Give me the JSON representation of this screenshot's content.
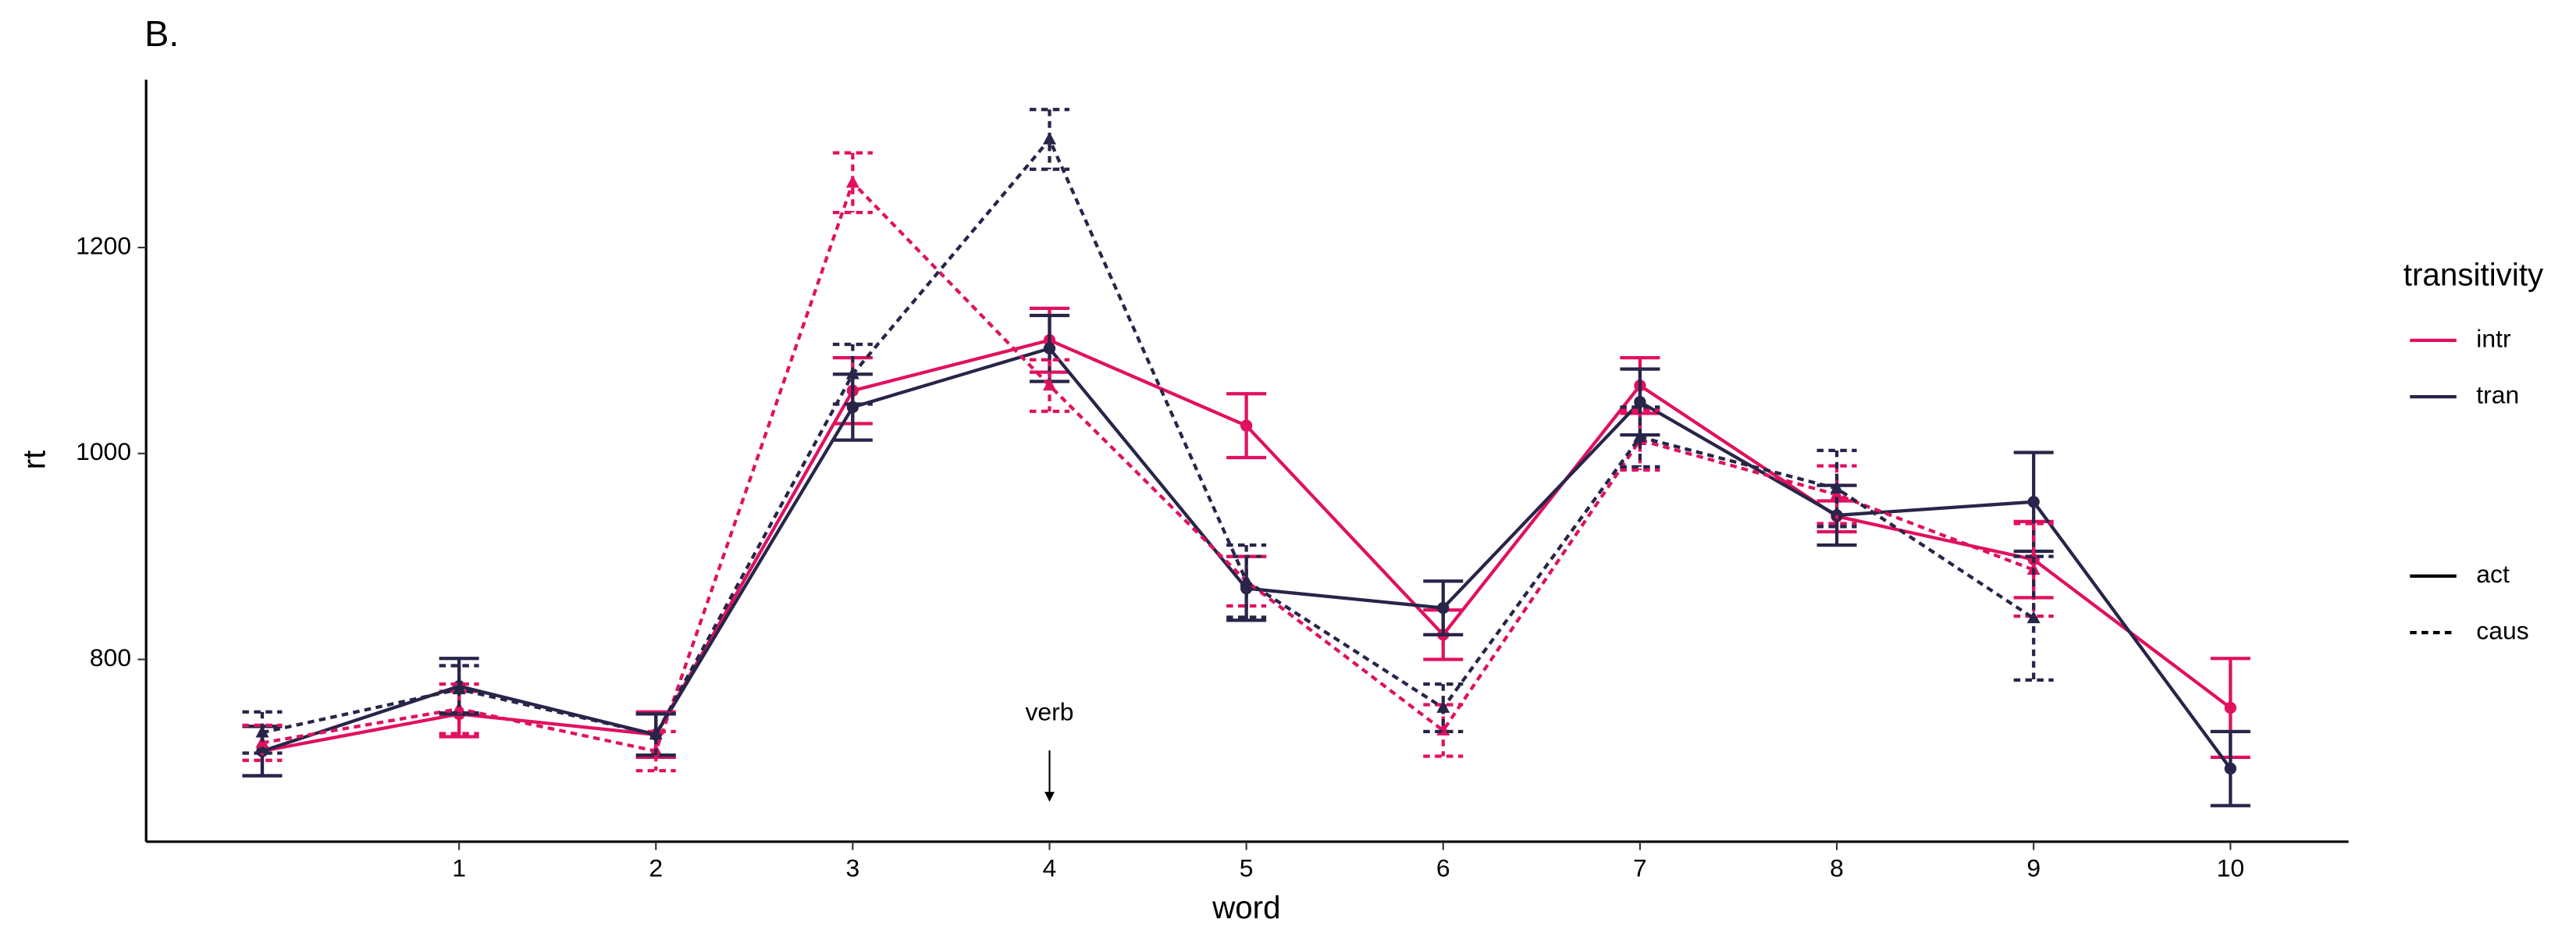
{
  "chart_data": {
    "type": "line",
    "subtitle": "B.",
    "x_label": "word",
    "y_label": "rt",
    "x": [
      0,
      1,
      2,
      3,
      4,
      5,
      6,
      7,
      8,
      9,
      10
    ],
    "xlim": [
      -0.59,
      10.6
    ],
    "xticks": [
      1,
      2,
      3,
      4,
      5,
      6,
      7,
      8,
      9,
      10
    ],
    "ylim": [
      623,
      1363
    ],
    "yticks": [
      800,
      1000,
      1200
    ],
    "series": [
      {
        "color": "#e0115f",
        "dashed": false,
        "marker": "circle",
        "values": [
          711,
          747,
          727,
          1061,
          1110,
          1027,
          824,
          1066,
          939,
          897,
          753
        ],
        "errors": [
          24,
          22,
          22,
          32,
          31,
          31,
          24,
          27,
          15,
          37,
          48
        ]
      },
      {
        "color": "#272549",
        "dashed": false,
        "marker": "circle",
        "values": [
          711,
          774,
          727,
          1045,
          1102,
          869,
          850,
          1050,
          940,
          953,
          694
        ],
        "errors": [
          24,
          27,
          20,
          32,
          32,
          31,
          26,
          32,
          29,
          48,
          36
        ]
      },
      {
        "color": "#e0115f",
        "dashed": true,
        "marker": "triangle",
        "values": [
          719,
          752,
          711,
          1263,
          1066,
          876,
          731,
          1013,
          960,
          887,
          null
        ],
        "errors": [
          17,
          24,
          19,
          29,
          25,
          24,
          25,
          29,
          28,
          45,
          null
        ]
      },
      {
        "color": "#272549",
        "dashed": true,
        "marker": "triangle",
        "values": [
          729,
          771,
          727,
          1077,
          1305,
          876,
          753,
          1016,
          966,
          840,
          null
        ],
        "errors": [
          20,
          23,
          20,
          29,
          29,
          35,
          23,
          29,
          37,
          60,
          null
        ]
      }
    ],
    "annotation": {
      "text": "verb",
      "x": 4
    },
    "legend": {
      "title": "transitivity",
      "colors": [
        {
          "name": "intr",
          "color": "#e0115f"
        },
        {
          "name": "tran",
          "color": "#272549"
        }
      ],
      "linetypes": [
        {
          "name": "act",
          "dashed": false
        },
        {
          "name": "caus",
          "dashed": true
        }
      ]
    }
  }
}
